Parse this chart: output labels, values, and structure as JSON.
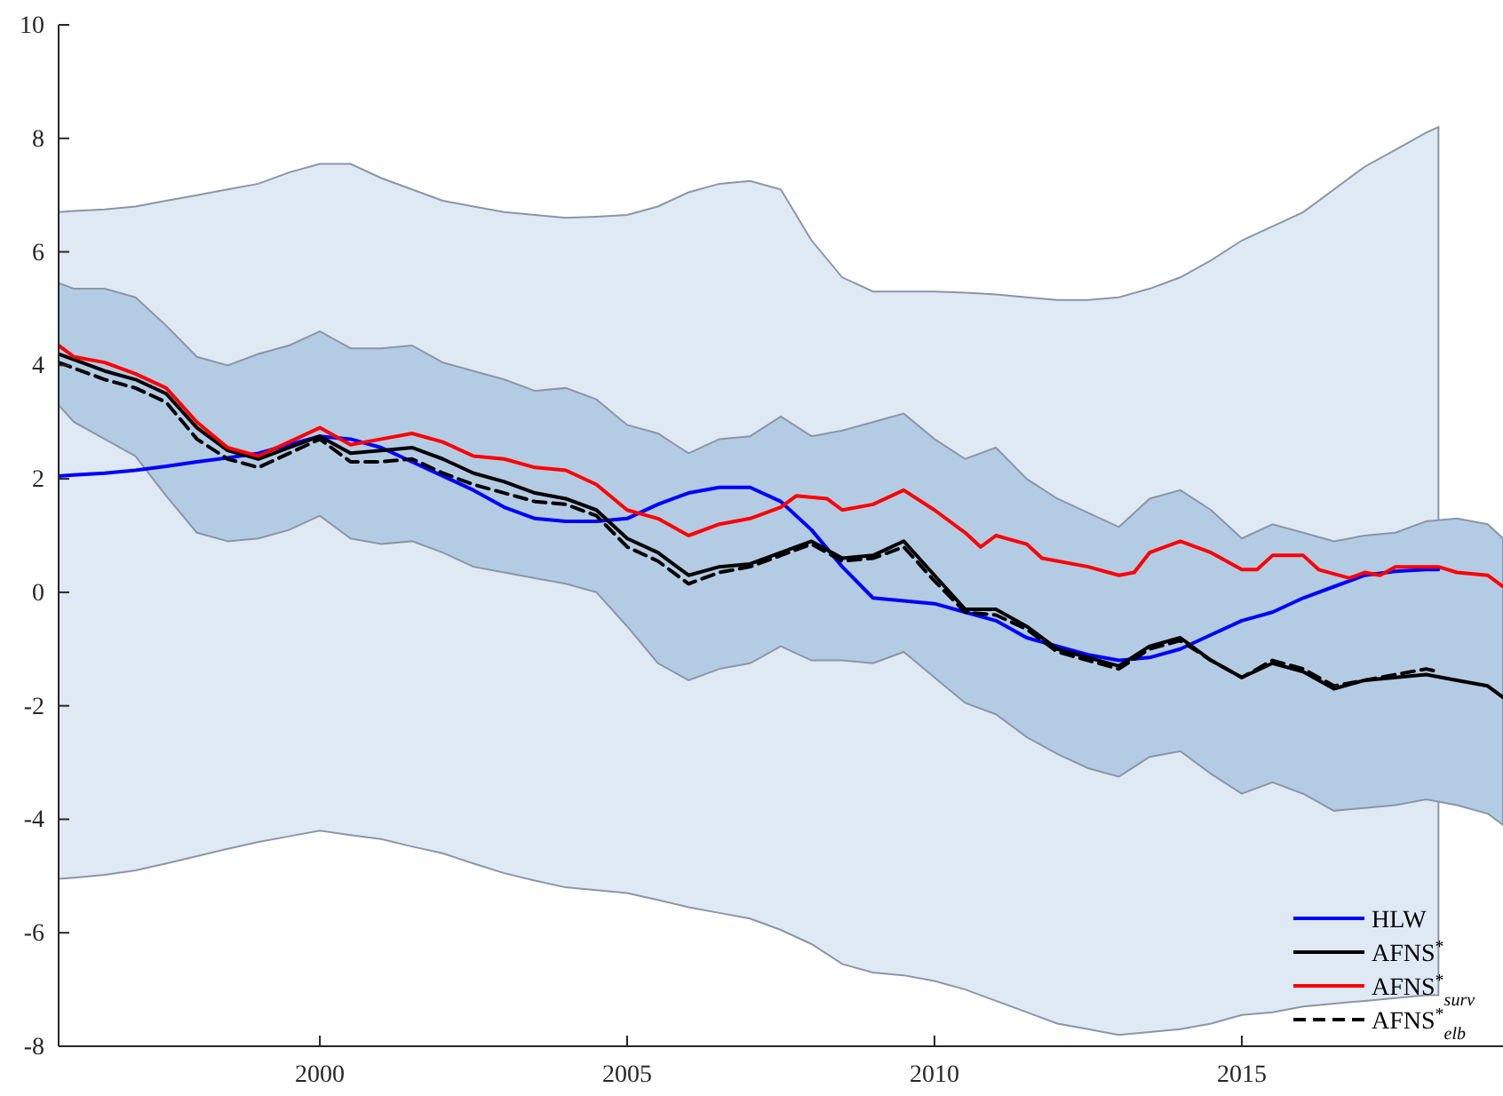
{
  "chart_data": {
    "type": "line",
    "xlim": [
      1995.75,
      2019.25
    ],
    "xticks": [
      2000,
      2005,
      2010,
      2015
    ],
    "ylim": [
      -8,
      10
    ],
    "yticks": [
      -8,
      -6,
      -4,
      -2,
      0,
      2,
      4,
      6,
      8,
      10
    ],
    "grid": false,
    "legend": "bottom right",
    "series": [
      {
        "name": "HLW",
        "color": "#0000ff",
        "line_style": "solid",
        "x": [
          1995.75,
          1996,
          1996.5,
          1997,
          1997.5,
          1998,
          1998.5,
          1999,
          1999.5,
          2000,
          2000.5,
          2001,
          2001.5,
          2002,
          2002.5,
          2003,
          2003.5,
          2004,
          2004.5,
          2005,
          2005.5,
          2006,
          2006.5,
          2007,
          2007.5,
          2008,
          2008.5,
          2009,
          2009.5,
          2010,
          2010.5,
          2011,
          2011.5,
          2012,
          2012.5,
          2013,
          2013.5,
          2014,
          2014.5,
          2015,
          2015.5,
          2016,
          2016.5,
          2017,
          2017.5,
          2018,
          2018.2
        ],
        "values": [
          2.05,
          2.07,
          2.1,
          2.15,
          2.22,
          2.3,
          2.37,
          2.45,
          2.6,
          2.75,
          2.7,
          2.55,
          2.3,
          2.05,
          1.8,
          1.5,
          1.3,
          1.25,
          1.25,
          1.3,
          1.55,
          1.75,
          1.85,
          1.85,
          1.6,
          1.1,
          0.45,
          -0.1,
          -0.15,
          -0.2,
          -0.35,
          -0.5,
          -0.8,
          -0.95,
          -1.1,
          -1.2,
          -1.15,
          -1.0,
          -0.75,
          -0.5,
          -0.35,
          -0.1,
          0.1,
          0.3,
          0.37,
          0.4,
          0.4
        ],
        "upper": [
          6.7,
          6.72,
          6.75,
          6.8,
          6.9,
          7.0,
          7.1,
          7.2,
          7.4,
          7.55,
          7.55,
          7.3,
          7.1,
          6.9,
          6.8,
          6.7,
          6.65,
          6.6,
          6.62,
          6.65,
          6.8,
          7.05,
          7.2,
          7.25,
          7.1,
          6.2,
          5.55,
          5.3,
          5.3,
          5.3,
          5.28,
          5.25,
          5.2,
          5.15,
          5.15,
          5.2,
          5.35,
          5.55,
          5.85,
          6.2,
          6.45,
          6.7,
          7.1,
          7.5,
          7.8,
          8.1,
          8.2
        ],
        "lower": [
          -5.05,
          -5.03,
          -4.98,
          -4.9,
          -4.78,
          -4.65,
          -4.52,
          -4.4,
          -4.3,
          -4.2,
          -4.28,
          -4.35,
          -4.48,
          -4.6,
          -4.78,
          -4.95,
          -5.08,
          -5.2,
          -5.25,
          -5.3,
          -5.42,
          -5.55,
          -5.65,
          -5.75,
          -5.95,
          -6.2,
          -6.55,
          -6.7,
          -6.75,
          -6.85,
          -7.0,
          -7.2,
          -7.4,
          -7.6,
          -7.7,
          -7.8,
          -7.75,
          -7.7,
          -7.6,
          -7.45,
          -7.4,
          -7.3,
          -7.25,
          -7.2,
          -7.15,
          -7.1,
          -7.1
        ]
      },
      {
        "name": "AFNS$^{*}$",
        "color": "#000000",
        "line_style": "solid",
        "x": [
          1995.75,
          1996,
          1996.5,
          1997,
          1997.5,
          1998,
          1998.5,
          1999,
          1999.5,
          2000,
          2000.5,
          2001,
          2001.5,
          2002,
          2002.5,
          2003,
          2003.5,
          2004,
          2004.5,
          2005,
          2005.5,
          2006,
          2006.5,
          2007,
          2007.5,
          2008,
          2008.5,
          2009,
          2009.5,
          2010,
          2010.5,
          2011,
          2011.5,
          2012,
          2012.5,
          2013,
          2013.5,
          2014,
          2014.5,
          2015,
          2015.5,
          2016,
          2016.5,
          2017,
          2017.5,
          2018,
          2018.5,
          2019,
          2019.25
        ],
        "values": [
          4.2,
          4.1,
          3.9,
          3.75,
          3.5,
          2.9,
          2.5,
          2.35,
          2.55,
          2.75,
          2.45,
          2.5,
          2.55,
          2.35,
          2.1,
          1.95,
          1.75,
          1.65,
          1.45,
          0.95,
          0.7,
          0.3,
          0.45,
          0.5,
          0.7,
          0.9,
          0.6,
          0.65,
          0.9,
          0.3,
          -0.3,
          -0.3,
          -0.6,
          -1.0,
          -1.15,
          -1.3,
          -0.95,
          -0.8,
          -1.2,
          -1.5,
          -1.25,
          -1.4,
          -1.7,
          -1.55,
          -1.5,
          -1.45,
          -1.55,
          -1.65,
          -1.85
        ],
        "upper": [
          5.45,
          5.35,
          5.35,
          5.2,
          4.7,
          4.15,
          4.0,
          4.2,
          4.35,
          4.6,
          4.3,
          4.3,
          4.35,
          4.05,
          3.9,
          3.75,
          3.55,
          3.6,
          3.4,
          2.95,
          2.8,
          2.45,
          2.7,
          2.75,
          3.1,
          2.75,
          2.85,
          3.0,
          3.15,
          2.7,
          2.35,
          2.55,
          2.0,
          1.65,
          1.4,
          1.15,
          1.65,
          1.8,
          1.45,
          0.95,
          1.2,
          1.05,
          0.9,
          1.0,
          1.05,
          1.25,
          1.3,
          1.2,
          0.95
        ],
        "lower": [
          3.3,
          3.0,
          2.7,
          2.4,
          1.7,
          1.05,
          0.9,
          0.95,
          1.1,
          1.35,
          0.95,
          0.85,
          0.9,
          0.7,
          0.45,
          0.35,
          0.25,
          0.15,
          0.0,
          -0.6,
          -1.25,
          -1.55,
          -1.35,
          -1.25,
          -0.95,
          -1.2,
          -1.2,
          -1.25,
          -1.05,
          -1.5,
          -1.95,
          -2.15,
          -2.55,
          -2.85,
          -3.1,
          -3.25,
          -2.9,
          -2.8,
          -3.2,
          -3.55,
          -3.35,
          -3.55,
          -3.85,
          -3.8,
          -3.75,
          -3.65,
          -3.75,
          -3.9,
          -4.1
        ]
      },
      {
        "name": "AFNS$^{*}$$_{surv}$",
        "color": "#ff0000",
        "line_style": "solid",
        "x": [
          1995.75,
          1996,
          1996.5,
          1997,
          1997.5,
          1998,
          1998.5,
          1999,
          1999.5,
          2000,
          2000.5,
          2001,
          2001.5,
          2002,
          2002.5,
          2003,
          2003.5,
          2004,
          2004.5,
          2005,
          2005.5,
          2006,
          2006.5,
          2007,
          2007.5,
          2007.75,
          2008.25,
          2008.5,
          2009,
          2009.5,
          2010,
          2010.5,
          2010.75,
          2011,
          2011.5,
          2011.75,
          2012.5,
          2013,
          2013.25,
          2013.5,
          2014,
          2014.5,
          2015,
          2015.25,
          2015.5,
          2016,
          2016.25,
          2016.75,
          2017,
          2017.25,
          2017.5,
          2018.2,
          2018.5,
          2019,
          2019.25
        ],
        "values": [
          4.35,
          4.15,
          4.05,
          3.85,
          3.6,
          3.0,
          2.55,
          2.4,
          2.65,
          2.9,
          2.6,
          2.7,
          2.8,
          2.65,
          2.4,
          2.35,
          2.2,
          2.15,
          1.9,
          1.45,
          1.3,
          1.0,
          1.2,
          1.3,
          1.5,
          1.7,
          1.65,
          1.45,
          1.55,
          1.8,
          1.45,
          1.05,
          0.8,
          1.0,
          0.85,
          0.6,
          0.45,
          0.3,
          0.35,
          0.7,
          0.9,
          0.7,
          0.4,
          0.4,
          0.65,
          0.65,
          0.4,
          0.25,
          0.35,
          0.3,
          0.45,
          0.45,
          0.35,
          0.3,
          0.1
        ]
      },
      {
        "name": "AFNS$^{*}$$_{elb}$",
        "color": "#000000",
        "line_style": "dashed",
        "x": [
          1995.75,
          1996,
          1996.5,
          1997,
          1997.5,
          1998,
          1998.5,
          1999,
          1999.5,
          2000,
          2000.5,
          2001,
          2001.5,
          2002,
          2002.5,
          2003,
          2003.5,
          2004,
          2004.5,
          2005,
          2005.5,
          2006,
          2006.5,
          2007,
          2007.5,
          2008,
          2008.5,
          2009,
          2009.5,
          2010,
          2010.5,
          2011,
          2011.5,
          2012,
          2012.5,
          2013,
          2013.5,
          2014,
          2014.5,
          2015,
          2015.5,
          2016,
          2016.5,
          2017,
          2017.5,
          2018,
          2018.2
        ],
        "values": [
          4.05,
          3.95,
          3.75,
          3.6,
          3.35,
          2.7,
          2.35,
          2.2,
          2.45,
          2.7,
          2.3,
          2.3,
          2.35,
          2.1,
          1.9,
          1.75,
          1.6,
          1.55,
          1.35,
          0.8,
          0.55,
          0.15,
          0.35,
          0.45,
          0.65,
          0.85,
          0.55,
          0.6,
          0.8,
          0.2,
          -0.35,
          -0.4,
          -0.65,
          -1.05,
          -1.2,
          -1.35,
          -1.0,
          -0.85,
          -1.2,
          -1.5,
          -1.2,
          -1.35,
          -1.65,
          -1.55,
          -1.45,
          -1.35,
          -1.4
        ]
      }
    ]
  }
}
